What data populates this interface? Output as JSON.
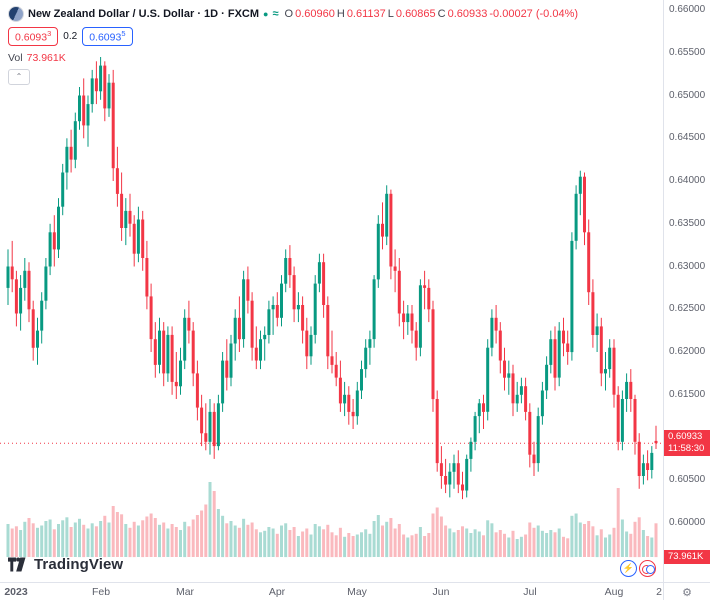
{
  "header": {
    "title": "New Zealand Dollar / U.S. Dollar · 1D · FXCM",
    "market_dot": "●",
    "approx_icon": "≈",
    "ohlc": {
      "o_label": "O",
      "o": "0.60960",
      "h_label": "H",
      "h": "0.61137",
      "l_label": "L",
      "l": "0.60865",
      "c_label": "C",
      "c": "0.60933",
      "change": "-0.00027 (-0.04%)"
    },
    "bid_main": "0.6093",
    "bid_sup": "3",
    "spread": "0.2",
    "ask_main": "0.6093",
    "ask_sup": "5",
    "vol_label": "Vol",
    "vol_value": "73.961K"
  },
  "price_axis": {
    "last_price_label": "0.60933",
    "countdown": "11:58:30",
    "volume_label": "73.961K"
  },
  "footer": {
    "brand": "TradingView"
  },
  "icons": {
    "gear": "⚙",
    "chevron_up": "⌃",
    "lightning": "⚡"
  },
  "colors": {
    "up": "#089981",
    "down": "#f23645",
    "accent_blue": "#2962ff",
    "axis_text": "#5d606b",
    "border": "#e0e3eb"
  },
  "chart_data": {
    "type": "candlestick",
    "title": "New Zealand Dollar / U.S. Dollar",
    "symbol": "NZDUSD",
    "interval": "1D",
    "exchange": "FXCM",
    "last": {
      "o": 0.6096,
      "h": 0.61137,
      "l": 0.60865,
      "c": 0.60933,
      "change": -0.00027,
      "change_pct": -0.04,
      "volume": "73.961K"
    },
    "price_ticks": [
      "0.66000",
      "0.65500",
      "0.65000",
      "0.64500",
      "0.64000",
      "0.63500",
      "0.63000",
      "0.62500",
      "0.62000",
      "0.61500",
      "0.61000",
      "0.60500",
      "0.60000"
    ],
    "ylim": [
      0.596,
      0.66117
    ],
    "months": [
      {
        "label": "2023",
        "i": 2,
        "b": 1
      },
      {
        "label": "Feb",
        "i": 22
      },
      {
        "label": "Mar",
        "i": 42
      },
      {
        "label": "Apr",
        "i": 64
      },
      {
        "label": "May",
        "i": 83
      },
      {
        "label": "Jun",
        "i": 103
      },
      {
        "label": "Jul",
        "i": 124
      },
      {
        "label": "Aug",
        "i": 144
      },
      {
        "label": "2",
        "i": 154.8
      }
    ],
    "y_anchor": 0.66117,
    "y_scale": 8550,
    "x0": 8,
    "x_step": 4.208,
    "grid": false,
    "legend_position": "top-left",
    "candles_format": [
      "open",
      "high",
      "low",
      "close",
      "rel_volume"
    ],
    "candles": [
      [
        0.6275,
        0.632,
        0.6255,
        0.63,
        44
      ],
      [
        0.63,
        0.633,
        0.627,
        0.6285,
        38
      ],
      [
        0.6285,
        0.6295,
        0.623,
        0.6245,
        41
      ],
      [
        0.6245,
        0.629,
        0.6225,
        0.6275,
        36
      ],
      [
        0.6275,
        0.631,
        0.626,
        0.6295,
        47
      ],
      [
        0.6295,
        0.6305,
        0.6235,
        0.625,
        52
      ],
      [
        0.625,
        0.626,
        0.619,
        0.6205,
        45
      ],
      [
        0.6205,
        0.624,
        0.6185,
        0.6225,
        39
      ],
      [
        0.6225,
        0.627,
        0.621,
        0.626,
        42
      ],
      [
        0.626,
        0.631,
        0.625,
        0.63,
        48
      ],
      [
        0.63,
        0.635,
        0.629,
        0.634,
        50
      ],
      [
        0.634,
        0.636,
        0.63,
        0.632,
        37
      ],
      [
        0.632,
        0.638,
        0.631,
        0.637,
        44
      ],
      [
        0.637,
        0.642,
        0.636,
        0.641,
        49
      ],
      [
        0.641,
        0.645,
        0.639,
        0.644,
        53
      ],
      [
        0.644,
        0.646,
        0.641,
        0.6425,
        40
      ],
      [
        0.6425,
        0.648,
        0.6415,
        0.647,
        46
      ],
      [
        0.647,
        0.651,
        0.646,
        0.65,
        51
      ],
      [
        0.65,
        0.652,
        0.645,
        0.6465,
        43
      ],
      [
        0.6465,
        0.65,
        0.644,
        0.649,
        38
      ],
      [
        0.649,
        0.653,
        0.648,
        0.652,
        45
      ],
      [
        0.652,
        0.654,
        0.649,
        0.6505,
        41
      ],
      [
        0.6505,
        0.6545,
        0.6495,
        0.6535,
        48
      ],
      [
        0.6535,
        0.654,
        0.647,
        0.6485,
        55
      ],
      [
        0.6485,
        0.6525,
        0.6475,
        0.6515,
        46
      ],
      [
        0.6515,
        0.653,
        0.64,
        0.6415,
        68
      ],
      [
        0.6415,
        0.644,
        0.637,
        0.6385,
        60
      ],
      [
        0.6385,
        0.641,
        0.633,
        0.6345,
        57
      ],
      [
        0.6345,
        0.638,
        0.6325,
        0.6365,
        44
      ],
      [
        0.6365,
        0.6385,
        0.6335,
        0.635,
        39
      ],
      [
        0.635,
        0.636,
        0.63,
        0.6315,
        47
      ],
      [
        0.6315,
        0.637,
        0.6305,
        0.6355,
        42
      ],
      [
        0.6355,
        0.6365,
        0.6295,
        0.631,
        49
      ],
      [
        0.631,
        0.633,
        0.625,
        0.6265,
        54
      ],
      [
        0.6265,
        0.628,
        0.62,
        0.6215,
        58
      ],
      [
        0.6215,
        0.6235,
        0.617,
        0.6185,
        52
      ],
      [
        0.6185,
        0.624,
        0.6175,
        0.6225,
        43
      ],
      [
        0.6225,
        0.6235,
        0.616,
        0.6175,
        46
      ],
      [
        0.6175,
        0.623,
        0.6165,
        0.622,
        38
      ],
      [
        0.622,
        0.623,
        0.615,
        0.6165,
        44
      ],
      [
        0.6165,
        0.62,
        0.6145,
        0.616,
        40
      ],
      [
        0.616,
        0.6205,
        0.615,
        0.619,
        36
      ],
      [
        0.619,
        0.625,
        0.618,
        0.624,
        47
      ],
      [
        0.624,
        0.626,
        0.621,
        0.6225,
        41
      ],
      [
        0.6225,
        0.6235,
        0.616,
        0.6175,
        50
      ],
      [
        0.6175,
        0.619,
        0.612,
        0.6135,
        56
      ],
      [
        0.6135,
        0.615,
        0.609,
        0.6105,
        62
      ],
      [
        0.6105,
        0.614,
        0.6085,
        0.6095,
        70
      ],
      [
        0.6095,
        0.6145,
        0.608,
        0.613,
        100
      ],
      [
        0.613,
        0.614,
        0.6075,
        0.609,
        88
      ],
      [
        0.609,
        0.615,
        0.6085,
        0.614,
        64
      ],
      [
        0.614,
        0.62,
        0.613,
        0.619,
        55
      ],
      [
        0.619,
        0.6215,
        0.6155,
        0.617,
        45
      ],
      [
        0.617,
        0.622,
        0.616,
        0.621,
        48
      ],
      [
        0.621,
        0.625,
        0.619,
        0.624,
        42
      ],
      [
        0.624,
        0.6265,
        0.62,
        0.6215,
        39
      ],
      [
        0.6215,
        0.6295,
        0.6205,
        0.6285,
        51
      ],
      [
        0.6285,
        0.63,
        0.6245,
        0.626,
        43
      ],
      [
        0.626,
        0.627,
        0.619,
        0.6205,
        46
      ],
      [
        0.6205,
        0.623,
        0.618,
        0.619,
        37
      ],
      [
        0.619,
        0.6225,
        0.618,
        0.6215,
        33
      ],
      [
        0.6215,
        0.623,
        0.619,
        0.622,
        35
      ],
      [
        0.622,
        0.626,
        0.621,
        0.625,
        40
      ],
      [
        0.625,
        0.6265,
        0.622,
        0.6255,
        38
      ],
      [
        0.6255,
        0.627,
        0.623,
        0.624,
        31
      ],
      [
        0.624,
        0.629,
        0.623,
        0.628,
        42
      ],
      [
        0.628,
        0.632,
        0.627,
        0.631,
        45
      ],
      [
        0.631,
        0.6325,
        0.6275,
        0.629,
        36
      ],
      [
        0.629,
        0.63,
        0.6235,
        0.625,
        40
      ],
      [
        0.625,
        0.627,
        0.6235,
        0.6255,
        28
      ],
      [
        0.6255,
        0.6265,
        0.621,
        0.6225,
        34
      ],
      [
        0.6225,
        0.624,
        0.618,
        0.6195,
        38
      ],
      [
        0.6195,
        0.623,
        0.6185,
        0.622,
        30
      ],
      [
        0.622,
        0.629,
        0.621,
        0.628,
        44
      ],
      [
        0.628,
        0.6315,
        0.627,
        0.6305,
        41
      ],
      [
        0.6305,
        0.6315,
        0.624,
        0.6255,
        37
      ],
      [
        0.6255,
        0.6265,
        0.618,
        0.6195,
        43
      ],
      [
        0.6195,
        0.6225,
        0.6175,
        0.6185,
        33
      ],
      [
        0.6185,
        0.62,
        0.616,
        0.617,
        29
      ],
      [
        0.617,
        0.619,
        0.613,
        0.614,
        39
      ],
      [
        0.614,
        0.6165,
        0.6125,
        0.615,
        27
      ],
      [
        0.615,
        0.616,
        0.6115,
        0.613,
        32
      ],
      [
        0.613,
        0.6145,
        0.611,
        0.6125,
        28
      ],
      [
        0.6125,
        0.6165,
        0.6115,
        0.6155,
        30
      ],
      [
        0.6155,
        0.619,
        0.6145,
        0.618,
        33
      ],
      [
        0.618,
        0.6215,
        0.617,
        0.6205,
        37
      ],
      [
        0.6205,
        0.6225,
        0.6185,
        0.6215,
        31
      ],
      [
        0.6215,
        0.629,
        0.6205,
        0.6285,
        48
      ],
      [
        0.6285,
        0.636,
        0.6275,
        0.635,
        56
      ],
      [
        0.635,
        0.6375,
        0.632,
        0.6335,
        42
      ],
      [
        0.6335,
        0.6395,
        0.6325,
        0.6385,
        47
      ],
      [
        0.6385,
        0.639,
        0.6285,
        0.63,
        52
      ],
      [
        0.63,
        0.632,
        0.627,
        0.6295,
        38
      ],
      [
        0.6295,
        0.631,
        0.623,
        0.6245,
        44
      ],
      [
        0.6245,
        0.626,
        0.6215,
        0.6235,
        30
      ],
      [
        0.6235,
        0.6255,
        0.622,
        0.6245,
        26
      ],
      [
        0.6245,
        0.6255,
        0.621,
        0.6225,
        29
      ],
      [
        0.6225,
        0.6235,
        0.619,
        0.6205,
        31
      ],
      [
        0.6205,
        0.6285,
        0.6195,
        0.6278,
        40
      ],
      [
        0.6278,
        0.6295,
        0.625,
        0.6275,
        28
      ],
      [
        0.6275,
        0.6285,
        0.6235,
        0.625,
        32
      ],
      [
        0.625,
        0.626,
        0.613,
        0.6145,
        58
      ],
      [
        0.6145,
        0.6155,
        0.606,
        0.607,
        66
      ],
      [
        0.607,
        0.609,
        0.604,
        0.6055,
        54
      ],
      [
        0.6055,
        0.6075,
        0.6035,
        0.6045,
        42
      ],
      [
        0.6045,
        0.607,
        0.603,
        0.606,
        38
      ],
      [
        0.606,
        0.608,
        0.604,
        0.607,
        33
      ],
      [
        0.607,
        0.6085,
        0.6035,
        0.6045,
        36
      ],
      [
        0.6045,
        0.606,
        0.6028,
        0.6038,
        41
      ],
      [
        0.6038,
        0.608,
        0.603,
        0.6075,
        38
      ],
      [
        0.6075,
        0.61,
        0.606,
        0.6095,
        32
      ],
      [
        0.6095,
        0.613,
        0.6085,
        0.6125,
        37
      ],
      [
        0.6125,
        0.6145,
        0.6105,
        0.614,
        34
      ],
      [
        0.614,
        0.615,
        0.611,
        0.613,
        29
      ],
      [
        0.613,
        0.6215,
        0.612,
        0.6205,
        49
      ],
      [
        0.6205,
        0.625,
        0.6195,
        0.624,
        45
      ],
      [
        0.624,
        0.6255,
        0.621,
        0.6225,
        33
      ],
      [
        0.6225,
        0.6235,
        0.6175,
        0.619,
        36
      ],
      [
        0.619,
        0.6205,
        0.6155,
        0.617,
        31
      ],
      [
        0.617,
        0.619,
        0.615,
        0.6175,
        26
      ],
      [
        0.6175,
        0.6185,
        0.6125,
        0.614,
        35
      ],
      [
        0.614,
        0.6165,
        0.613,
        0.615,
        24
      ],
      [
        0.615,
        0.617,
        0.614,
        0.616,
        27
      ],
      [
        0.616,
        0.617,
        0.612,
        0.613,
        30
      ],
      [
        0.613,
        0.614,
        0.6065,
        0.608,
        46
      ],
      [
        0.608,
        0.6095,
        0.6055,
        0.607,
        39
      ],
      [
        0.607,
        0.6135,
        0.606,
        0.6125,
        42
      ],
      [
        0.6125,
        0.6165,
        0.6115,
        0.6155,
        35
      ],
      [
        0.6155,
        0.6195,
        0.6145,
        0.6185,
        32
      ],
      [
        0.6185,
        0.6225,
        0.6175,
        0.6215,
        36
      ],
      [
        0.6215,
        0.623,
        0.6155,
        0.617,
        33
      ],
      [
        0.617,
        0.6235,
        0.616,
        0.6225,
        38
      ],
      [
        0.6225,
        0.624,
        0.6195,
        0.621,
        27
      ],
      [
        0.621,
        0.6225,
        0.6185,
        0.62,
        25
      ],
      [
        0.62,
        0.634,
        0.619,
        0.633,
        55
      ],
      [
        0.633,
        0.6395,
        0.632,
        0.6385,
        58
      ],
      [
        0.6385,
        0.6412,
        0.636,
        0.6405,
        46
      ],
      [
        0.6405,
        0.641,
        0.6325,
        0.634,
        44
      ],
      [
        0.634,
        0.6355,
        0.6255,
        0.627,
        48
      ],
      [
        0.627,
        0.6285,
        0.6205,
        0.622,
        41
      ],
      [
        0.622,
        0.6245,
        0.62,
        0.623,
        29
      ],
      [
        0.623,
        0.624,
        0.616,
        0.6175,
        37
      ],
      [
        0.6175,
        0.62,
        0.6155,
        0.618,
        26
      ],
      [
        0.618,
        0.6215,
        0.617,
        0.6205,
        30
      ],
      [
        0.6205,
        0.6215,
        0.6135,
        0.615,
        39
      ],
      [
        0.615,
        0.616,
        0.6085,
        0.6095,
        92
      ],
      [
        0.6095,
        0.6155,
        0.6085,
        0.6145,
        50
      ],
      [
        0.6145,
        0.6175,
        0.613,
        0.6165,
        34
      ],
      [
        0.6165,
        0.618,
        0.613,
        0.6145,
        31
      ],
      [
        0.6145,
        0.615,
        0.608,
        0.6095,
        47
      ],
      [
        0.6095,
        0.6105,
        0.604,
        0.6055,
        53
      ],
      [
        0.6055,
        0.608,
        0.6045,
        0.607,
        36
      ],
      [
        0.607,
        0.6085,
        0.605,
        0.6062,
        28
      ],
      [
        0.6062,
        0.609,
        0.6052,
        0.6082,
        26
      ],
      [
        0.6096,
        0.61137,
        0.60865,
        0.60933,
        45
      ]
    ]
  }
}
